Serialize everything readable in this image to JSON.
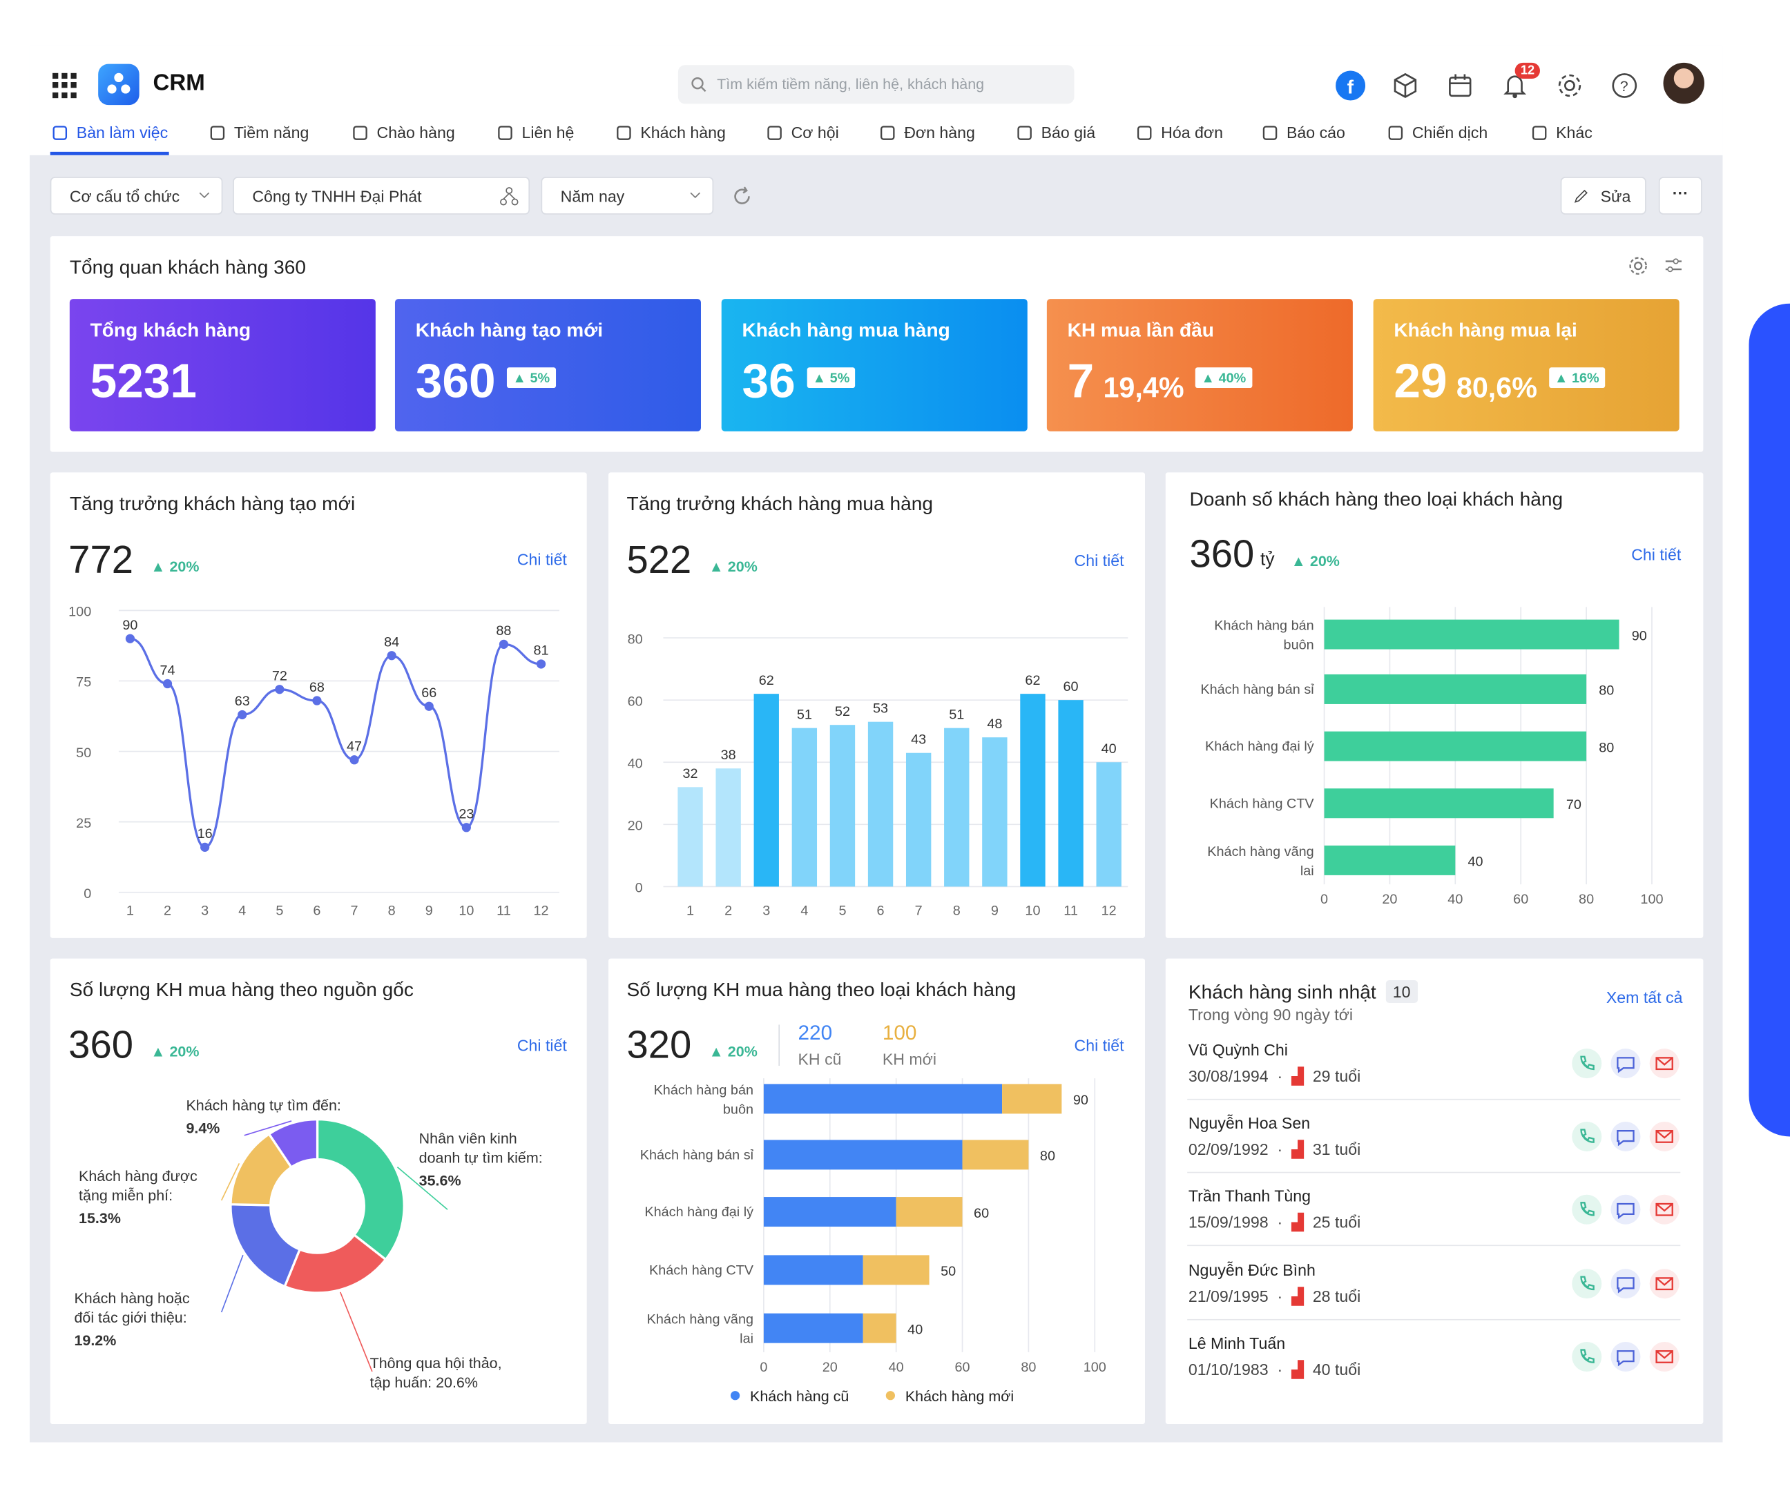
{
  "app": {
    "title": "CRM",
    "notification_count": "12"
  },
  "search": {
    "placeholder": "Tìm kiếm tiềm năng, liên hệ, khách hàng"
  },
  "nav": [
    "Bàn làm việc",
    "Tiềm năng",
    "Chào hàng",
    "Liên hệ",
    "Khách hàng",
    "Cơ hội",
    "Đơn hàng",
    "Báo giá",
    "Hóa đơn",
    "Báo cáo",
    "Chiến dịch",
    "Khác"
  ],
  "filters": {
    "org": "Cơ cấu tổ chức",
    "company": "Công ty TNHH Đại Phát",
    "period": "Năm nay",
    "edit": "Sửa",
    "more": "···"
  },
  "overview": {
    "title": "Tổng quan khách hàng 360",
    "kpis": [
      {
        "label": "Tổng khách hàng",
        "value": "5231",
        "pct": "",
        "chip": ""
      },
      {
        "label": "Khách hàng tạo mới",
        "value": "360",
        "pct": "",
        "chip": "5%"
      },
      {
        "label": "Khách hàng mua hàng",
        "value": "36",
        "pct": "",
        "chip": "5%"
      },
      {
        "label": "KH mua lần đầu",
        "value": "7",
        "pct": "19,4%",
        "chip": "40%"
      },
      {
        "label": "Khách hàng mua lại",
        "value": "29",
        "pct": "80,6%",
        "chip": "16%"
      }
    ]
  },
  "detail_link": "Chi tiết",
  "panels": {
    "new_growth": {
      "title": "Tăng trưởng khách hàng tạo mới",
      "total": "772",
      "change": "20%"
    },
    "buy_growth": {
      "title": "Tăng trưởng khách hàng mua hàng",
      "total": "522",
      "change": "20%"
    },
    "revenue_type": {
      "title": "Doanh số khách hàng theo loại khách hàng",
      "total": "360",
      "unit": "tỷ",
      "change": "20%"
    },
    "source": {
      "title": "Số lượng KH mua hàng theo nguồn gốc",
      "total": "360",
      "change": "20%"
    },
    "buy_type": {
      "title": "Số lượng KH mua hàng theo loại khách hàng",
      "total": "320",
      "change": "20%",
      "old_value": "220",
      "old_label": "KH cũ",
      "new_value": "100",
      "new_label": "KH mới"
    },
    "birthdays": {
      "title": "Khách hàng sinh nhật",
      "count": "10",
      "subtitle": "Trong vòng 90 ngày tới",
      "see_all": "Xem tất cả"
    }
  },
  "chart_data": [
    {
      "type": "line",
      "title": "Tăng trưởng khách hàng tạo mới",
      "x": [
        1,
        2,
        3,
        4,
        5,
        6,
        7,
        8,
        9,
        10,
        11,
        12
      ],
      "values": [
        90,
        74,
        16,
        63,
        72,
        68,
        47,
        84,
        66,
        23,
        88,
        81
      ],
      "ylim": [
        0,
        100
      ],
      "yticks": [
        0,
        25,
        50,
        75,
        100
      ],
      "color": "#5b6fe6"
    },
    {
      "type": "bar",
      "title": "Tăng trưởng khách hàng mua hàng",
      "categories": [
        1,
        2,
        3,
        4,
        5,
        6,
        7,
        8,
        9,
        10,
        11,
        12
      ],
      "values": [
        32,
        38,
        62,
        51,
        52,
        53,
        43,
        51,
        48,
        62,
        60,
        40
      ],
      "colors": [
        "#b3e5fc",
        "#b3e5fc",
        "#29b6f6",
        "#81d4fa",
        "#81d4fa",
        "#81d4fa",
        "#81d4fa",
        "#81d4fa",
        "#81d4fa",
        "#29b6f6",
        "#29b6f6",
        "#81d4fa"
      ],
      "ylim": [
        0,
        80
      ],
      "yticks": [
        0,
        20,
        40,
        60,
        80
      ]
    },
    {
      "type": "bar",
      "orientation": "horizontal",
      "title": "Doanh số khách hàng theo loại khách hàng",
      "categories": [
        "Khách hàng bán buôn",
        "Khách hàng bán sỉ",
        "Khách hàng đại lý",
        "Khách hàng CTV",
        "Khách hàng vãng lai"
      ],
      "values": [
        90,
        80,
        80,
        70,
        40
      ],
      "xlim": [
        0,
        100
      ],
      "xticks": [
        0,
        20,
        40,
        60,
        80,
        100
      ],
      "color": "#3ecf9b"
    },
    {
      "type": "pie",
      "title": "Số lượng KH mua hàng theo nguồn gốc",
      "slices": [
        {
          "label": "Nhân viên kinh doanh tự tìm kiếm:",
          "value": 35.6,
          "value_text": "35.6%",
          "color": "#3ecf9b"
        },
        {
          "label": "Thông qua hội thảo, tập huấn:",
          "value": 20.6,
          "value_text": "20.6%",
          "color": "#ef5b5b"
        },
        {
          "label": "Khách hàng hoặc đối tác giới thiệu:",
          "value": 19.2,
          "value_text": "19.2%",
          "color": "#5b6fe6"
        },
        {
          "label": "Khách hàng được tặng miễn phí:",
          "value": 15.3,
          "value_text": "15.3%",
          "color": "#f0c060"
        },
        {
          "label": "Khách hàng tự tìm đến:",
          "value": 9.4,
          "value_text": "9.4%",
          "color": "#7b5cf0"
        }
      ]
    },
    {
      "type": "bar",
      "orientation": "horizontal",
      "stacked": true,
      "title": "Số lượng KH mua hàng theo loại khách hàng",
      "categories": [
        "Khách hàng bán buôn",
        "Khách hàng bán sỉ",
        "Khách hàng đại lý",
        "Khách hàng CTV",
        "Khách hàng vãng lai"
      ],
      "series": [
        {
          "name": "Khách hàng cũ",
          "values": [
            72,
            60,
            40,
            30,
            30
          ],
          "color": "#4285f4"
        },
        {
          "name": "Khách hàng mới",
          "values": [
            18,
            20,
            20,
            20,
            10
          ],
          "color": "#f0c060"
        }
      ],
      "totals": [
        90,
        80,
        60,
        50,
        40
      ],
      "xlim": [
        0,
        100
      ],
      "xticks": [
        0,
        20,
        40,
        60,
        80,
        100
      ],
      "legend": "bottom"
    }
  ],
  "birthday_list": [
    {
      "name": "Vũ Quỳnh Chi",
      "date": "30/08/1994",
      "age": "29 tuổi"
    },
    {
      "name": "Nguyễn Hoa Sen",
      "date": "02/09/1992",
      "age": "31 tuổi"
    },
    {
      "name": "Trần Thanh Tùng",
      "date": "15/09/1998",
      "age": "25 tuổi"
    },
    {
      "name": "Nguyễn Đức Bình",
      "date": "21/09/1995",
      "age": "28 tuổi"
    },
    {
      "name": "Lê Minh Tuấn",
      "date": "01/10/1983",
      "age": "40 tuổi"
    }
  ]
}
